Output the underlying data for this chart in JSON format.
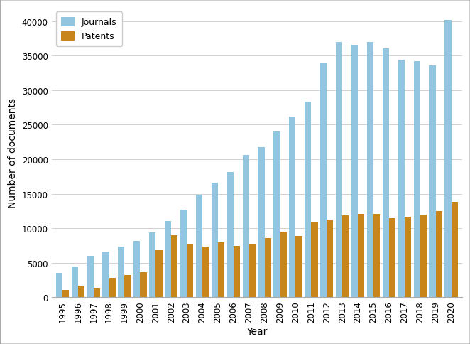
{
  "years": [
    1995,
    1996,
    1997,
    1998,
    1999,
    2000,
    2001,
    2002,
    2003,
    2004,
    2005,
    2006,
    2007,
    2008,
    2009,
    2010,
    2011,
    2012,
    2013,
    2014,
    2015,
    2016,
    2017,
    2018,
    2019,
    2020
  ],
  "journals": [
    3500,
    4500,
    6000,
    6600,
    7300,
    8200,
    9400,
    11100,
    12700,
    14900,
    16600,
    18100,
    20600,
    21800,
    24000,
    26200,
    28300,
    34000,
    37000,
    36600,
    37000,
    36000,
    34400,
    34200,
    33600,
    40200
  ],
  "patents": [
    1100,
    1700,
    1400,
    2800,
    3200,
    3600,
    6800,
    9000,
    7700,
    7400,
    8000,
    7500,
    7700,
    8600,
    9500,
    8900,
    10900,
    11300,
    11900,
    12100,
    12100,
    11500,
    11700,
    12000,
    12500,
    13800
  ],
  "journal_color": "#92C5E0",
  "patent_color": "#C8851A",
  "xlabel": "Year",
  "ylabel": "Number of documents",
  "ylim": [
    0,
    42000
  ],
  "yticks": [
    0,
    5000,
    10000,
    15000,
    20000,
    25000,
    30000,
    35000,
    40000
  ],
  "legend_labels": [
    "Journals",
    "Patents"
  ],
  "background_color": "#ffffff",
  "grid_color": "#d0d0d0",
  "border_color": "#aaaaaa"
}
